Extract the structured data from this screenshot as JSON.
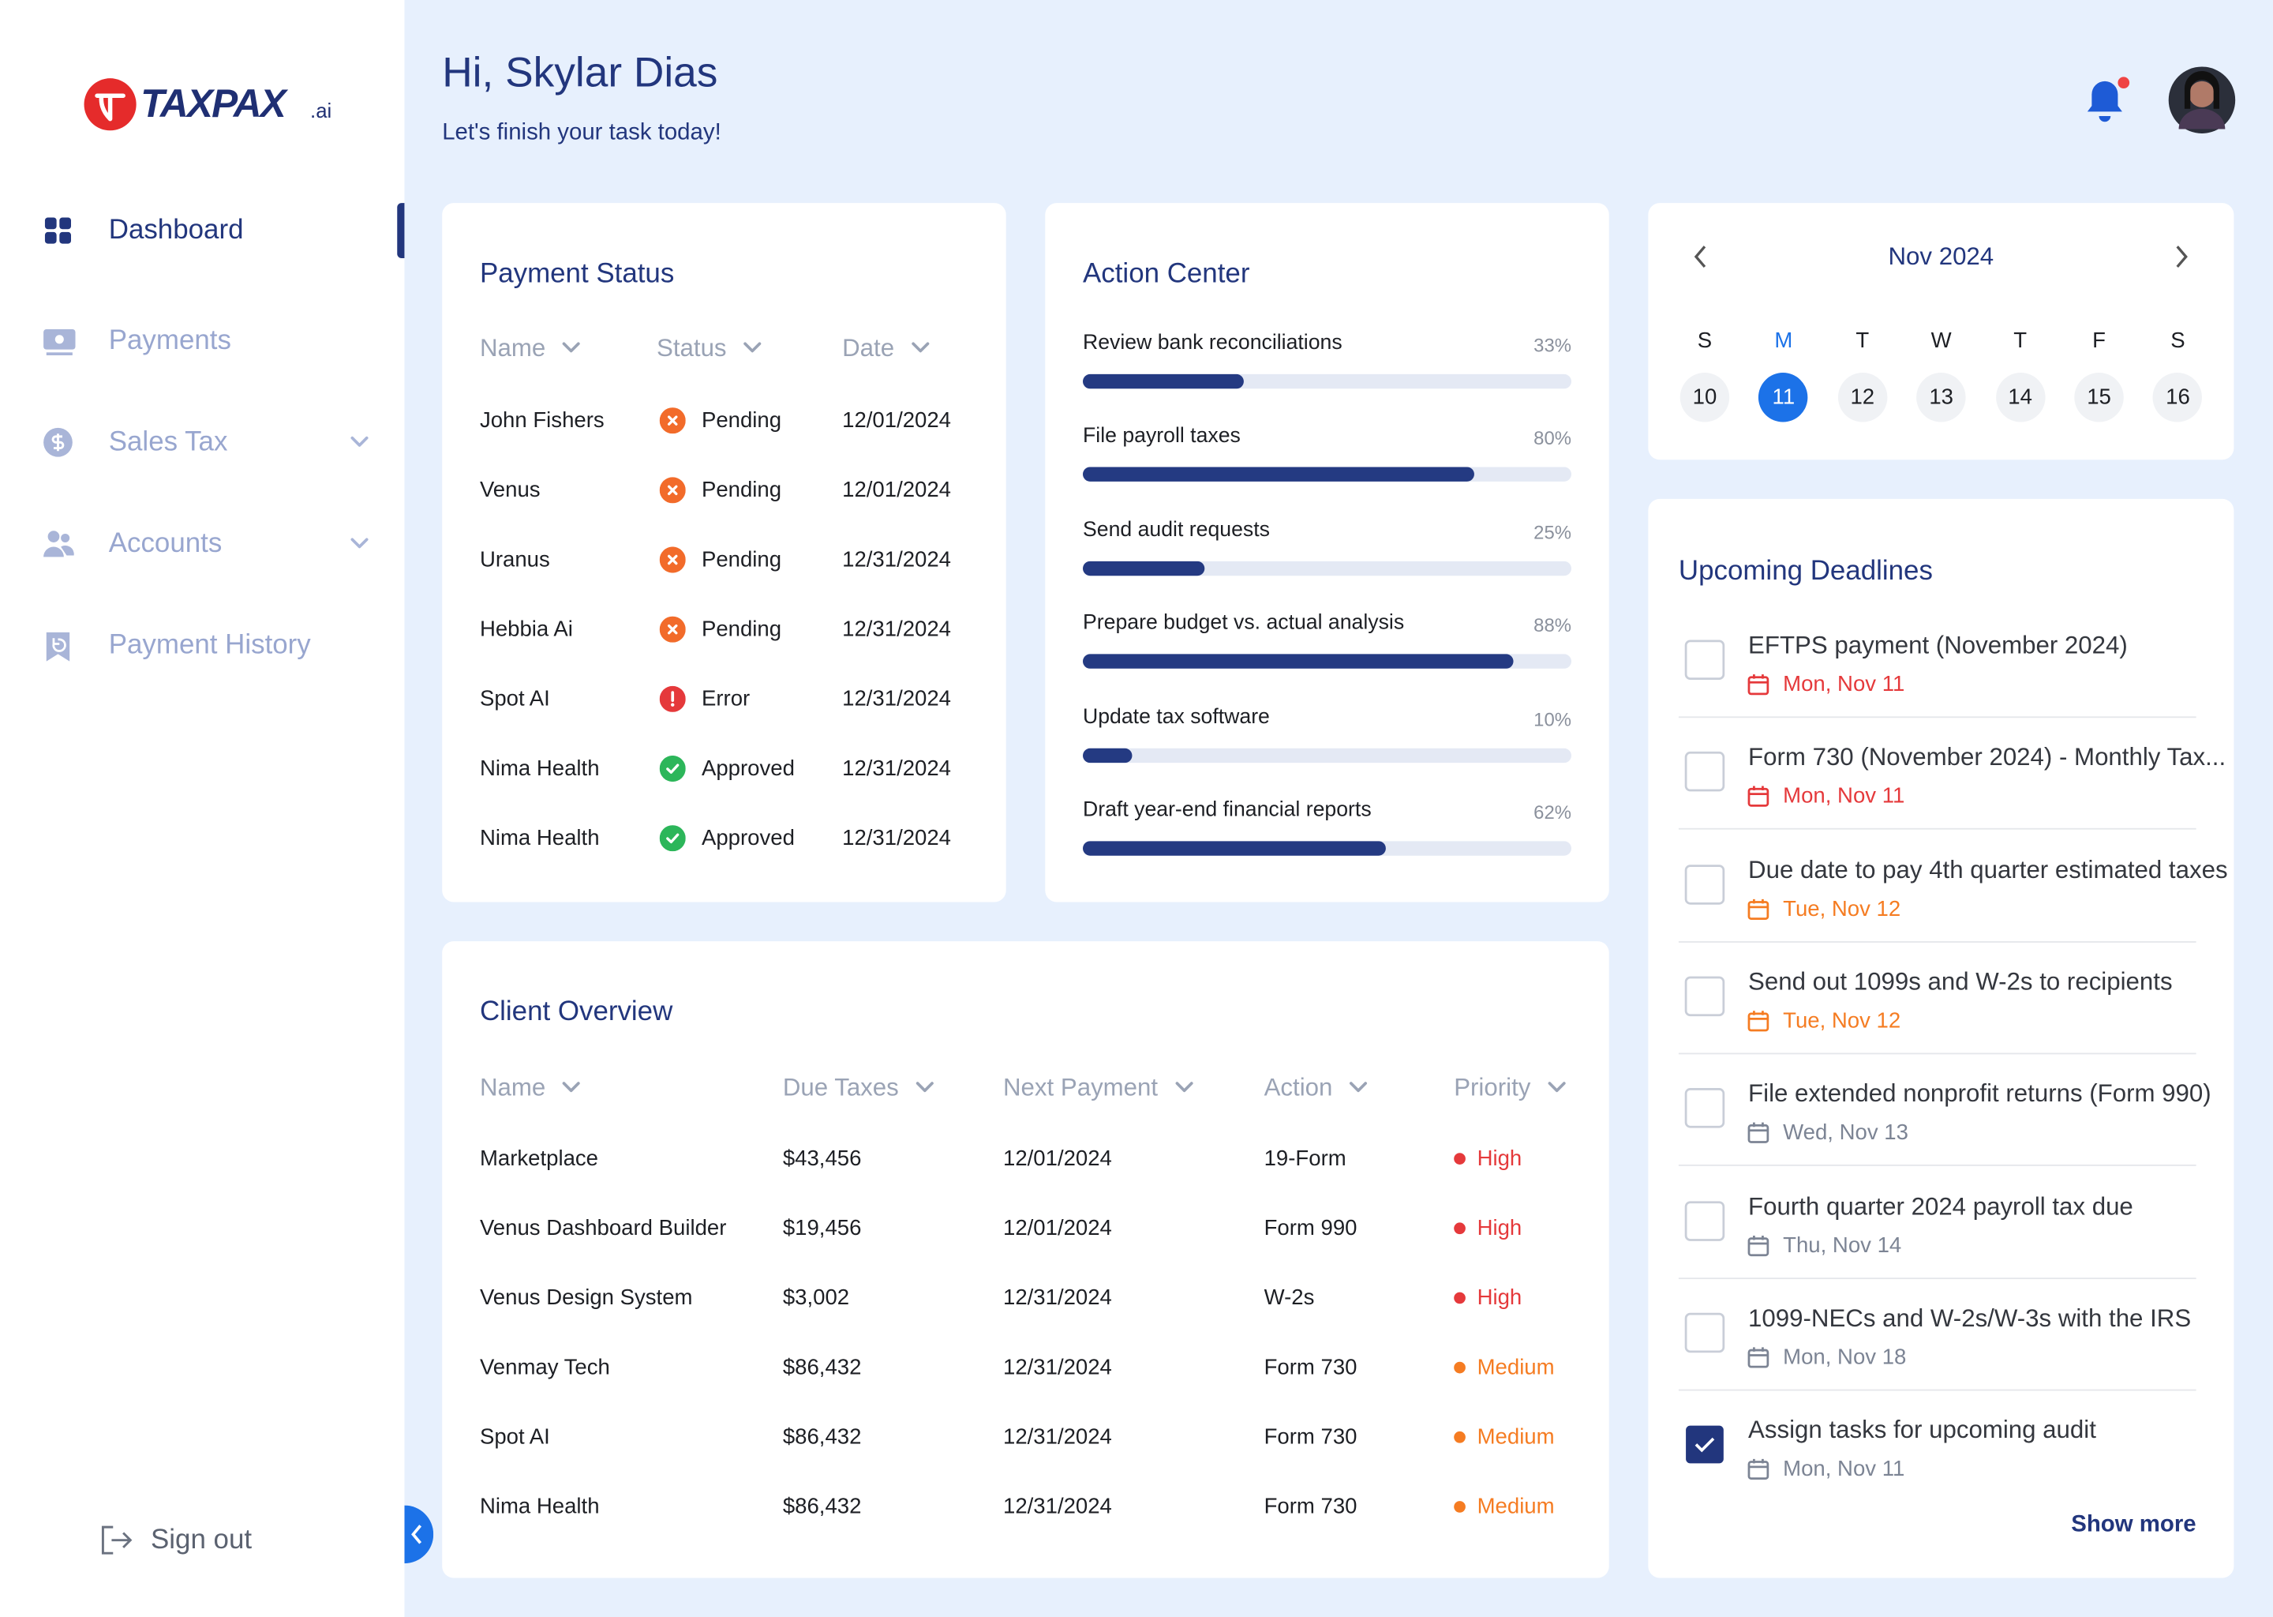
{
  "brand": {
    "name": "TAXPAX",
    "suffix": ".ai"
  },
  "sidebar": {
    "nav": [
      {
        "label": "Dashboard",
        "active": true,
        "expandable": false
      },
      {
        "label": "Payments",
        "active": false,
        "expandable": false
      },
      {
        "label": "Sales Tax",
        "active": false,
        "expandable": true
      },
      {
        "label": "Accounts",
        "active": false,
        "expandable": true
      },
      {
        "label": "Payment History",
        "active": false,
        "expandable": false
      }
    ],
    "sign_out": "Sign out"
  },
  "header": {
    "greeting": "Hi, Skylar Dias",
    "subtitle": "Let's finish your task today!"
  },
  "payment_status": {
    "title": "Payment Status",
    "columns": [
      "Name",
      "Status",
      "Date"
    ],
    "rows": [
      {
        "name": "John Fishers",
        "status": "Pending",
        "status_icon": "cross",
        "status_color": "#f26b2a",
        "date": "12/01/2024"
      },
      {
        "name": "Venus",
        "status": "Pending",
        "status_icon": "cross",
        "status_color": "#f26b2a",
        "date": "12/01/2024"
      },
      {
        "name": "Uranus",
        "status": "Pending",
        "status_icon": "cross",
        "status_color": "#f26b2a",
        "date": "12/31/2024"
      },
      {
        "name": "Hebbia Ai",
        "status": "Pending",
        "status_icon": "cross",
        "status_color": "#f26b2a",
        "date": "12/31/2024"
      },
      {
        "name": "Spot AI",
        "status": "Error",
        "status_icon": "alert",
        "status_color": "#e5393b",
        "date": "12/31/2024"
      },
      {
        "name": "Nima Health",
        "status": "Approved",
        "status_icon": "check",
        "status_color": "#2cb65a",
        "date": "12/31/2024"
      },
      {
        "name": "Nima Health",
        "status": "Approved",
        "status_icon": "check",
        "status_color": "#2cb65a",
        "date": "12/31/2024"
      }
    ]
  },
  "action_center": {
    "title": "Action Center",
    "tasks": [
      {
        "label": "Review bank reconciliations",
        "progress": 33,
        "progress_label": "33%"
      },
      {
        "label": "File payroll taxes",
        "progress": 80,
        "progress_label": "80%"
      },
      {
        "label": "Send audit requests",
        "progress": 25,
        "progress_label": "25%"
      },
      {
        "label": "Prepare budget vs. actual analysis",
        "progress": 88,
        "progress_label": "88%"
      },
      {
        "label": "Update tax software",
        "progress": 10,
        "progress_label": "10%"
      },
      {
        "label": "Draft year-end financial reports",
        "progress": 62,
        "progress_label": "62%"
      }
    ]
  },
  "calendar": {
    "month": "Nov 2024",
    "weekdays": [
      "S",
      "M",
      "T",
      "W",
      "T",
      "F",
      "S"
    ],
    "days": [
      10,
      11,
      12,
      13,
      14,
      15,
      16
    ],
    "selected_day": 11
  },
  "client_overview": {
    "title": "Client Overview",
    "columns": [
      "Name",
      "Due Taxes",
      "Next Payment",
      "Action",
      "Priority"
    ],
    "rows": [
      {
        "name": "Marketplace",
        "due_taxes": "$43,456",
        "next_payment": "12/01/2024",
        "action": "19-Form",
        "priority": "High",
        "priority_color": "#e5393b"
      },
      {
        "name": "Venus Dashboard Builder",
        "due_taxes": "$19,456",
        "next_payment": "12/01/2024",
        "action": "Form 990",
        "priority": "High",
        "priority_color": "#e5393b"
      },
      {
        "name": "Venus Design System",
        "due_taxes": "$3,002",
        "next_payment": "12/31/2024",
        "action": "W-2s",
        "priority": "High",
        "priority_color": "#e5393b"
      },
      {
        "name": "Venmay Tech",
        "due_taxes": "$86,432",
        "next_payment": "12/31/2024",
        "action": "Form 730",
        "priority": "Medium",
        "priority_color": "#f57c22"
      },
      {
        "name": "Spot AI",
        "due_taxes": "$86,432",
        "next_payment": "12/31/2024",
        "action": "Form 730",
        "priority": "Medium",
        "priority_color": "#f57c22"
      },
      {
        "name": "Nima Health",
        "due_taxes": "$86,432",
        "next_payment": "12/31/2024",
        "action": "Form 730",
        "priority": "Medium",
        "priority_color": "#f57c22"
      }
    ]
  },
  "deadlines": {
    "title": "Upcoming Deadlines",
    "items": [
      {
        "title": "EFTPS payment (November 2024)",
        "date": "Mon, Nov 11",
        "date_color": "#e5393b",
        "checked": false
      },
      {
        "title": "Form 730 (November 2024) - Monthly Tax...",
        "date": "Mon, Nov 11",
        "date_color": "#e5393b",
        "checked": false
      },
      {
        "title": "Due date to pay 4th quarter estimated taxes",
        "date": "Tue, Nov 12",
        "date_color": "#f57c22",
        "checked": false
      },
      {
        "title": "Send out 1099s and W-2s to recipients",
        "date": "Tue, Nov 12",
        "date_color": "#f57c22",
        "checked": false
      },
      {
        "title": "File extended nonprofit returns (Form 990)",
        "date": "Wed, Nov 13",
        "date_color": "#7c8494",
        "checked": false
      },
      {
        "title": "Fourth quarter 2024 payroll tax due",
        "date": "Thu, Nov 14",
        "date_color": "#7c8494",
        "checked": false
      },
      {
        "title": "1099-NECs and W-2s/W-3s with the IRS",
        "date": "Mon, Nov 18",
        "date_color": "#7c8494",
        "checked": false
      },
      {
        "title": "Assign tasks for upcoming audit",
        "date": "Mon, Nov 11",
        "date_color": "#7c8494",
        "checked": true
      }
    ],
    "show_more": "Show more"
  }
}
